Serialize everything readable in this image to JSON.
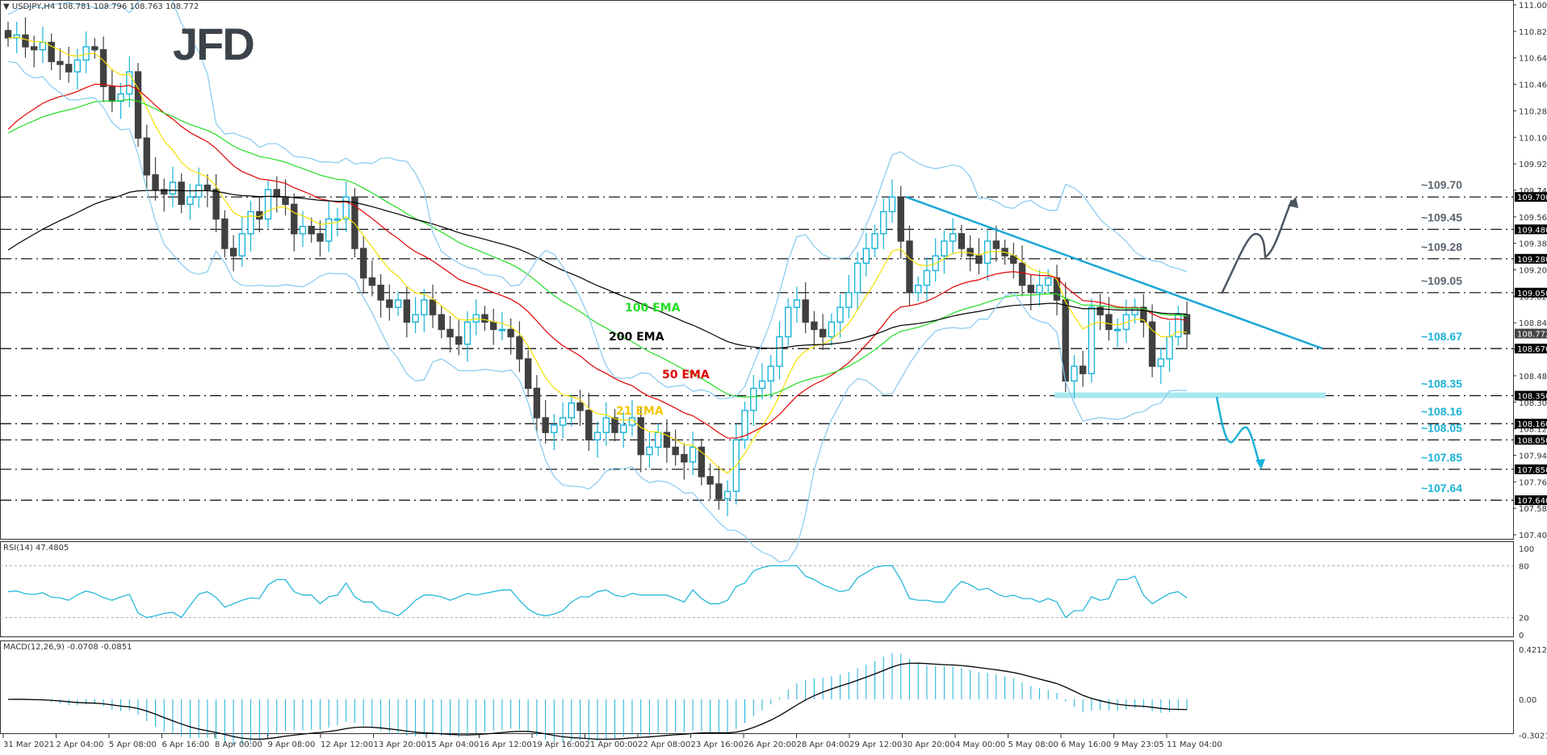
{
  "header": {
    "symbol": "USDJPY,H4",
    "ohlc": "108.781 108.796 108.763 108.772",
    "logo": "JFD"
  },
  "indicators": {
    "rsi_label": "RSI(14) 47.4805",
    "macd_label": "MACD(12,26,9) -0.0708 -0.0851"
  },
  "colors": {
    "bull": "#17b3d8",
    "bear": "#404040",
    "ema21": "#f5e000",
    "ema50": "#e00000",
    "ema100": "#22dd22",
    "ema200": "#000000",
    "bollinger": "#86c9ee",
    "trendline": "#1aa6d6",
    "bull_arrow": "#4a5560",
    "bear_arrow": "#1ab2d6",
    "support_zone": "#a8e8ee"
  },
  "annotations": {
    "ema100": "100 EMA",
    "ema200": "200 EMA",
    "ema50": "50 EMA",
    "ema21": "21 EMA"
  },
  "chart_data": {
    "type": "candlestick",
    "title": "USDJPY,H4",
    "price_axis": {
      "range": [
        107.405,
        111.005
      ],
      "ticks": [
        "111.005",
        "110.825",
        "110.645",
        "110.465",
        "110.285",
        "110.105",
        "109.925",
        "109.745",
        "109.565",
        "109.385",
        "109.205",
        "109.025",
        "108.845",
        "108.665",
        "108.485",
        "108.305",
        "108.125",
        "107.945",
        "107.765",
        "107.585",
        "107.405"
      ],
      "current_price": "108.772"
    },
    "time_axis": [
      "31 Mar 2021",
      "2 Apr 04:00",
      "5 Apr 08:00",
      "6 Apr 16:00",
      "8 Apr 00:00",
      "9 Apr 08:00",
      "12 Apr 12:00",
      "13 Apr 20:00",
      "15 Apr 04:00",
      "16 Apr 12:00",
      "19 Apr 16:00",
      "21 Apr 00:00",
      "22 Apr 08:00",
      "23 Apr 16:00",
      "26 Apr 20:00",
      "28 Apr 04:00",
      "29 Apr 12:00",
      "30 Apr 20:00",
      "4 May 00:00",
      "5 May 08:00",
      "6 May 16:00",
      "9 May 23:05",
      "11 May 04:00"
    ],
    "levels": [
      {
        "label": "~109.70",
        "price": 109.7,
        "tag": "109.700",
        "color": "#5a6470"
      },
      {
        "label": "~109.45",
        "price": 109.48,
        "tag": "109.480",
        "color": "#5a6470"
      },
      {
        "label": "~109.28",
        "price": 109.28,
        "tag": "109.280",
        "color": "#5a6470"
      },
      {
        "label": "~109.05",
        "price": 109.05,
        "tag": "109.050",
        "color": "#5a6470"
      },
      {
        "label": "~108.67",
        "price": 108.67,
        "tag": "108.670",
        "color": "#1ab2d6"
      },
      {
        "label": "~108.35",
        "price": 108.35,
        "tag": "108.350",
        "color": "#1ab2d6"
      },
      {
        "label": "~108.16",
        "price": 108.16,
        "tag": "108.160",
        "color": "#1ab2d6"
      },
      {
        "label": "~108.05",
        "price": 108.05,
        "tag": "108.050",
        "color": "#1ab2d6"
      },
      {
        "label": "~107.85",
        "price": 107.85,
        "tag": "107.850",
        "color": "#1ab2d6"
      },
      {
        "label": "~107.64",
        "price": 107.64,
        "tag": "107.640",
        "color": "#1ab2d6"
      }
    ],
    "trendline": {
      "from": [
        1122,
        109.7
      ],
      "to": [
        1638,
        108.67
      ]
    },
    "candles_close_approx": [
      110.78,
      110.8,
      110.72,
      110.7,
      110.75,
      110.62,
      110.6,
      110.55,
      110.63,
      110.72,
      110.7,
      110.45,
      110.35,
      110.4,
      110.55,
      110.1,
      109.85,
      109.75,
      109.72,
      109.8,
      109.65,
      109.7,
      109.78,
      109.75,
      109.55,
      109.35,
      109.3,
      109.45,
      109.6,
      109.55,
      109.75,
      109.7,
      109.65,
      109.45,
      109.5,
      109.45,
      109.4,
      109.55,
      109.55,
      109.7,
      109.35,
      109.15,
      109.1,
      109.0,
      108.95,
      109.0,
      108.85,
      108.9,
      109.0,
      108.9,
      108.8,
      108.75,
      108.7,
      108.85,
      108.9,
      108.85,
      108.8,
      108.8,
      108.75,
      108.6,
      108.4,
      108.2,
      108.1,
      108.15,
      108.2,
      108.3,
      108.25,
      108.05,
      108.1,
      108.2,
      108.1,
      108.15,
      108.2,
      107.95,
      108.0,
      108.1,
      108.0,
      107.95,
      107.9,
      108.0,
      107.8,
      107.75,
      107.65,
      107.7,
      108.05,
      108.25,
      108.4,
      108.45,
      108.55,
      108.75,
      108.95,
      109.0,
      108.85,
      108.8,
      108.75,
      108.85,
      108.95,
      109.05,
      109.25,
      109.35,
      109.45,
      109.6,
      109.7,
      109.4,
      109.05,
      109.1,
      109.2,
      109.3,
      109.4,
      109.45,
      109.35,
      109.3,
      109.25,
      109.4,
      109.35,
      109.3,
      109.25,
      109.1,
      109.05,
      109.1,
      109.15,
      109.0,
      108.45,
      108.55,
      108.5,
      108.95,
      108.9,
      108.8,
      108.8,
      108.9,
      108.95,
      108.85,
      108.55,
      108.6,
      108.75,
      108.9,
      108.77
    ],
    "rsi": {
      "label": "RSI(14) 47.4805",
      "range": [
        0,
        100
      ],
      "levels": [
        80,
        20
      ],
      "value": 47.4805
    },
    "macd": {
      "label": "MACD(12,26,9) -0.0708 -0.0851",
      "range": [
        -0.3021,
        0.4212
      ],
      "ticks": [
        "0.4212",
        "0.00",
        "-0.3021"
      ],
      "main": -0.0708,
      "signal": -0.0851
    },
    "rsi_ticks": [
      "100",
      "80",
      "20",
      "0"
    ]
  }
}
